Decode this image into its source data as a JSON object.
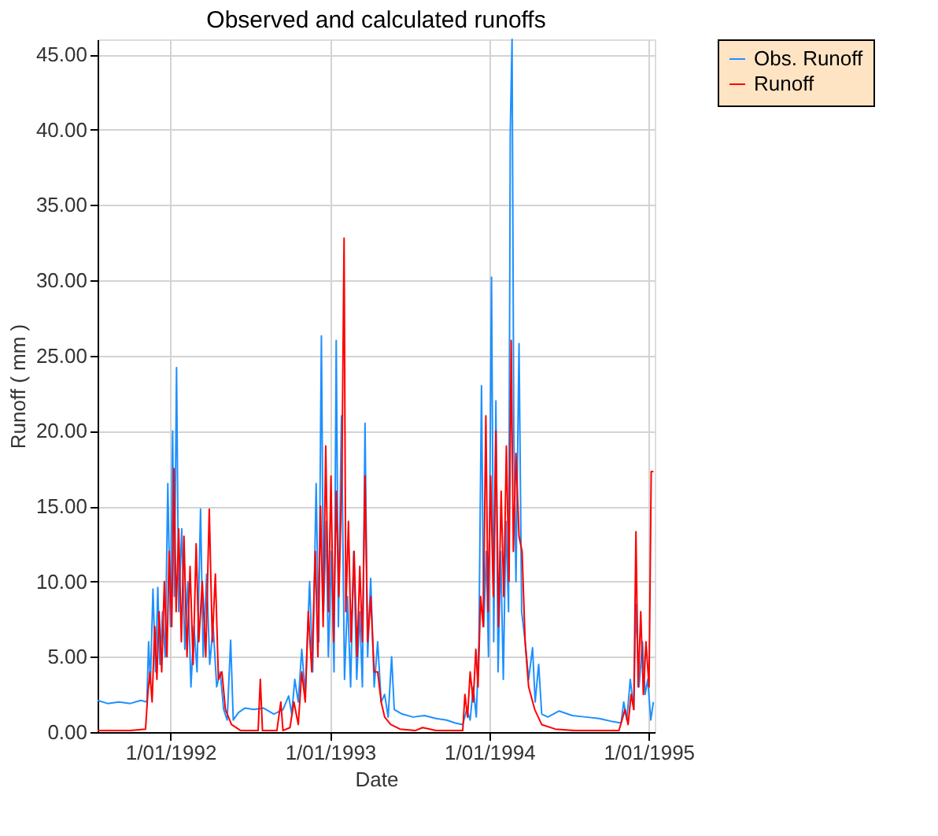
{
  "chart_data": {
    "type": "line",
    "title": "Observed and calculated runoffs",
    "xlabel": "Date",
    "ylabel": "Runoff ( mm )",
    "xlim": [
      "1991-07-18",
      "1995-01-15"
    ],
    "xticks": [
      {
        "value": "1992-01-01",
        "label": "1/01/1992"
      },
      {
        "value": "1993-01-01",
        "label": "1/01/1993"
      },
      {
        "value": "1994-01-01",
        "label": "1/01/1994"
      },
      {
        "value": "1995-01-01",
        "label": "1/01/1995"
      }
    ],
    "ylim": [
      0,
      46
    ],
    "yticks": [
      {
        "value": 0,
        "label": "0.00"
      },
      {
        "value": 5,
        "label": "5.00"
      },
      {
        "value": 10,
        "label": "10.00"
      },
      {
        "value": 15,
        "label": "15.00"
      },
      {
        "value": 20,
        "label": "20.00"
      },
      {
        "value": 25,
        "label": "25.00"
      },
      {
        "value": 30,
        "label": "30.00"
      },
      {
        "value": 35,
        "label": "35.00"
      },
      {
        "value": 40,
        "label": "40.00"
      },
      {
        "value": 45,
        "label": "45.00"
      }
    ],
    "grid": true,
    "legend": "right",
    "marker": "none",
    "line_style": "solid",
    "series": [
      {
        "name": "Obs. Runoff",
        "color": "#1e90ff",
        "x": [
          "1991-07-18",
          "1991-08-10",
          "1991-09-05",
          "1991-10-01",
          "1991-10-25",
          "1991-11-08",
          "1991-11-12",
          "1991-11-16",
          "1991-11-22",
          "1991-11-28",
          "1991-12-03",
          "1991-12-08",
          "1991-12-14",
          "1991-12-20",
          "1991-12-26",
          "1992-01-01",
          "1992-01-06",
          "1992-01-10",
          "1992-01-15",
          "1992-01-20",
          "1992-01-27",
          "1992-02-03",
          "1992-02-10",
          "1992-02-17",
          "1992-02-24",
          "1992-03-02",
          "1992-03-10",
          "1992-03-16",
          "1992-03-24",
          "1992-03-31",
          "1992-04-08",
          "1992-04-16",
          "1992-04-24",
          "1992-05-02",
          "1992-05-10",
          "1992-05-18",
          "1992-05-24",
          "1992-06-05",
          "1992-06-20",
          "1992-07-10",
          "1992-08-01",
          "1992-08-25",
          "1992-09-15",
          "1992-09-28",
          "1992-10-05",
          "1992-10-12",
          "1992-10-20",
          "1992-10-28",
          "1992-11-05",
          "1992-11-15",
          "1992-11-22",
          "1992-11-30",
          "1992-12-06",
          "1992-12-12",
          "1992-12-17",
          "1992-12-23",
          "1992-12-28",
          "1993-01-04",
          "1993-01-10",
          "1993-01-15",
          "1993-01-20",
          "1993-01-27",
          "1993-02-03",
          "1993-02-10",
          "1993-02-17",
          "1993-02-24",
          "1993-03-03",
          "1993-03-10",
          "1993-03-16",
          "1993-03-22",
          "1993-03-28",
          "1993-04-04",
          "1993-04-12",
          "1993-04-20",
          "1993-04-28",
          "1993-05-06",
          "1993-05-14",
          "1993-05-22",
          "1993-05-28",
          "1993-06-15",
          "1993-07-10",
          "1993-08-05",
          "1993-09-01",
          "1993-09-25",
          "1993-10-15",
          "1993-11-01",
          "1993-11-10",
          "1993-11-18",
          "1993-11-25",
          "1993-12-02",
          "1993-12-08",
          "1993-12-14",
          "1993-12-19",
          "1993-12-25",
          "1993-12-30",
          "1994-01-06",
          "1994-01-11",
          "1994-01-16",
          "1994-01-21",
          "1994-01-27",
          "1994-02-02",
          "1994-02-08",
          "1994-02-14",
          "1994-02-18",
          "1994-02-22",
          "1994-02-26",
          "1994-03-03",
          "1994-03-10",
          "1994-03-16",
          "1994-03-24",
          "1994-04-01",
          "1994-04-10",
          "1994-04-16",
          "1994-04-24",
          "1994-05-01",
          "1994-05-15",
          "1994-06-10",
          "1994-07-10",
          "1994-08-10",
          "1994-09-10",
          "1994-10-10",
          "1994-10-30",
          "1994-11-05",
          "1994-11-12",
          "1994-11-20",
          "1994-11-28",
          "1994-12-03",
          "1994-12-10",
          "1994-12-18",
          "1994-12-24",
          "1994-12-30",
          "1995-01-06",
          "1995-01-12"
        ],
        "values": [
          2.1,
          1.9,
          2.0,
          1.9,
          2.1,
          2.0,
          6.0,
          3.2,
          9.5,
          4.0,
          9.6,
          4.5,
          8.0,
          5.0,
          16.5,
          7.0,
          20.0,
          9.0,
          24.2,
          8.0,
          13.5,
          5.5,
          10.0,
          3.0,
          7.0,
          4.0,
          14.8,
          5.0,
          10.5,
          4.5,
          7.0,
          3.0,
          4.0,
          1.5,
          0.8,
          6.1,
          0.8,
          1.3,
          1.6,
          1.5,
          1.6,
          1.2,
          1.5,
          2.4,
          1.2,
          3.5,
          2.0,
          5.5,
          2.5,
          10.0,
          4.0,
          16.5,
          6.0,
          26.3,
          8.0,
          14.0,
          5.0,
          12.0,
          4.0,
          26.0,
          7.0,
          21.0,
          3.5,
          9.0,
          3.0,
          12.0,
          3.5,
          8.0,
          3.0,
          20.5,
          5.0,
          10.2,
          3.0,
          6.0,
          2.0,
          2.5,
          1.0,
          5.0,
          1.5,
          1.2,
          1.0,
          1.1,
          0.9,
          0.8,
          0.6,
          0.5,
          1.5,
          0.8,
          3.0,
          1.0,
          6.0,
          23.0,
          7.0,
          12.0,
          5.0,
          30.2,
          6.0,
          22.0,
          4.0,
          12.0,
          3.5,
          14.0,
          8.0,
          40.0,
          46.0,
          20.0,
          10.0,
          25.8,
          8.0,
          6.0,
          3.5,
          5.6,
          2.0,
          4.5,
          1.2,
          1.0,
          1.4,
          1.1,
          1.0,
          0.9,
          0.7,
          0.6,
          2.0,
          0.8,
          3.5,
          1.5,
          8.5,
          3.0,
          6.0,
          2.5,
          3.5,
          0.8,
          2.0
        ]
      },
      {
        "name": "Runoff",
        "color": "#ff0000",
        "x": [
          "1991-07-18",
          "1991-10-01",
          "1991-11-05",
          "1991-11-10",
          "1991-11-15",
          "1991-11-20",
          "1991-11-26",
          "1991-12-01",
          "1991-12-06",
          "1991-12-12",
          "1991-12-18",
          "1991-12-24",
          "1991-12-29",
          "1992-01-04",
          "1992-01-09",
          "1992-01-14",
          "1992-01-20",
          "1992-01-26",
          "1992-02-01",
          "1992-02-08",
          "1992-02-15",
          "1992-02-22",
          "1992-02-29",
          "1992-03-06",
          "1992-03-14",
          "1992-03-22",
          "1992-03-30",
          "1992-04-06",
          "1992-04-13",
          "1992-04-20",
          "1992-04-28",
          "1992-05-06",
          "1992-05-20",
          "1992-06-10",
          "1992-07-20",
          "1992-07-25",
          "1992-07-30",
          "1992-09-01",
          "1992-09-10",
          "1992-09-15",
          "1992-10-01",
          "1992-10-10",
          "1992-10-20",
          "1992-10-28",
          "1992-11-05",
          "1992-11-12",
          "1992-11-20",
          "1992-11-28",
          "1992-12-04",
          "1992-12-10",
          "1992-12-16",
          "1992-12-22",
          "1992-12-28",
          "1993-01-03",
          "1993-01-09",
          "1993-01-15",
          "1993-01-21",
          "1993-01-28",
          "1993-02-02",
          "1993-02-06",
          "1993-02-12",
          "1993-02-18",
          "1993-02-25",
          "1993-03-04",
          "1993-03-10",
          "1993-03-16",
          "1993-03-22",
          "1993-03-28",
          "1993-04-04",
          "1993-04-12",
          "1993-04-20",
          "1993-04-28",
          "1993-05-06",
          "1993-05-20",
          "1993-06-10",
          "1993-07-15",
          "1993-08-01",
          "1993-09-01",
          "1993-10-15",
          "1993-11-01",
          "1993-11-06",
          "1993-11-12",
          "1993-11-18",
          "1993-11-25",
          "1993-12-01",
          "1993-12-06",
          "1993-12-12",
          "1993-12-18",
          "1993-12-24",
          "1993-12-29",
          "1994-01-04",
          "1994-01-10",
          "1994-01-16",
          "1994-01-22",
          "1994-01-28",
          "1994-02-03",
          "1994-02-09",
          "1994-02-15",
          "1994-02-20",
          "1994-02-25",
          "1994-03-03",
          "1994-03-10",
          "1994-03-17",
          "1994-03-24",
          "1994-04-01",
          "1994-04-15",
          "1994-05-01",
          "1994-06-01",
          "1994-07-15",
          "1994-09-01",
          "1994-10-25",
          "1994-11-08",
          "1994-11-15",
          "1994-11-22",
          "1994-11-28",
          "1994-12-03",
          "1994-12-08",
          "1994-12-14",
          "1994-12-20",
          "1994-12-26",
          "1995-01-02",
          "1995-01-07",
          "1995-01-12"
        ],
        "values": [
          0.1,
          0.1,
          0.2,
          2.5,
          4.0,
          2.0,
          7.0,
          3.5,
          8.0,
          4.0,
          10.0,
          5.0,
          12.0,
          7.0,
          17.5,
          8.0,
          13.5,
          6.0,
          13.0,
          5.0,
          11.0,
          4.5,
          12.5,
          6.0,
          10.0,
          5.0,
          14.8,
          6.0,
          10.5,
          3.5,
          4.0,
          1.5,
          0.5,
          0.1,
          0.1,
          3.5,
          0.1,
          0.1,
          2.0,
          0.1,
          0.3,
          2.0,
          0.5,
          4.0,
          2.0,
          8.0,
          4.0,
          12.0,
          5.0,
          15.0,
          7.0,
          19.0,
          8.0,
          17.0,
          6.0,
          16.0,
          9.0,
          17.0,
          32.8,
          8.0,
          14.0,
          6.0,
          12.0,
          5.0,
          11.0,
          6.0,
          17.0,
          6.0,
          9.0,
          4.0,
          4.0,
          2.0,
          1.0,
          0.5,
          0.2,
          0.1,
          0.3,
          0.1,
          0.1,
          0.1,
          2.5,
          1.0,
          4.0,
          2.0,
          5.5,
          3.0,
          9.0,
          7.0,
          21.0,
          8.0,
          17.0,
          9.0,
          20.0,
          7.0,
          16.0,
          9.0,
          19.0,
          10.0,
          26.0,
          12.0,
          18.5,
          13.0,
          12.0,
          6.0,
          3.0,
          1.5,
          0.5,
          0.2,
          0.1,
          0.1,
          0.1,
          1.5,
          0.5,
          2.5,
          1.5,
          13.3,
          3.0,
          8.0,
          2.5,
          6.0,
          3.0,
          17.3,
          17.3
        ]
      }
    ]
  }
}
